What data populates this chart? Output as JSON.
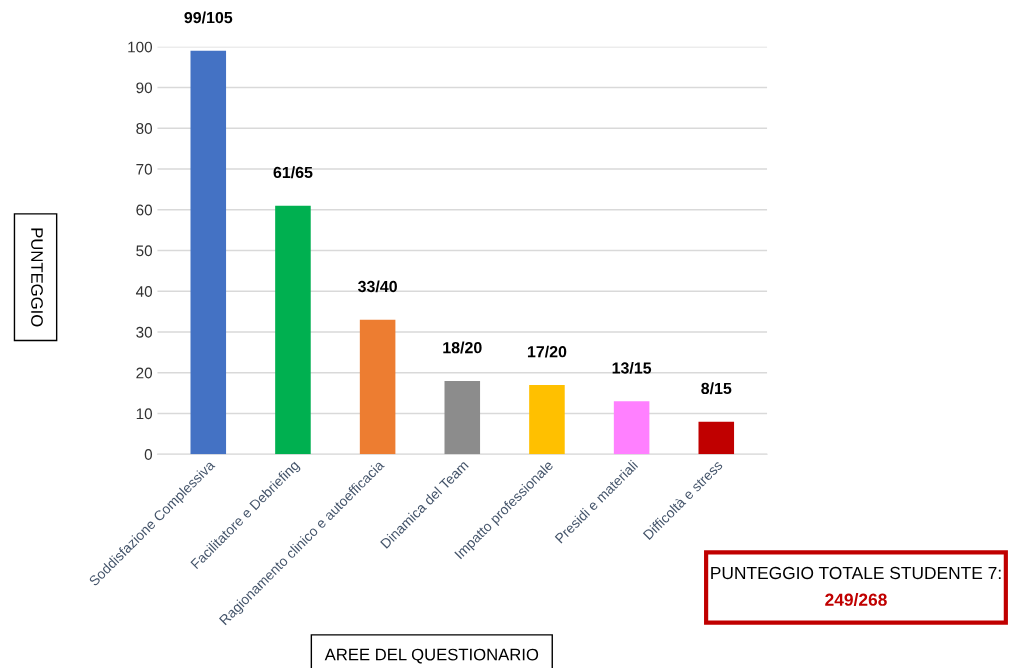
{
  "chart_data": {
    "type": "bar",
    "xlabel": "AREE DEL QUESTIONARIO",
    "ylabel": "PUNTEGGIO",
    "categories": [
      "Soddisfazione Complessiva",
      "Facilitatore e Debriefing",
      "Ragionamento clinico e autoefficacia",
      "Dinamica del Team",
      "Impatto professionale",
      "Presidi e materiali",
      "Difficoltà e stress"
    ],
    "values": [
      99,
      61,
      33,
      18,
      17,
      13,
      8
    ],
    "colors": [
      "#4472c4",
      "#00b050",
      "#ed7d31",
      "#8c8c8c",
      "#ffc000",
      "#ff80ff",
      "#c00000"
    ],
    "value_labels": [
      "99/105",
      "61/65",
      "33/40",
      "18/20",
      "17/20",
      "13/15",
      "8/15"
    ],
    "ylim": [
      0,
      100
    ],
    "yticks": [
      0,
      10,
      20,
      30,
      40,
      50,
      60,
      70,
      80,
      90,
      100
    ],
    "grid": "y",
    "annotations": [
      "PUNTEGGIO TOTALE STUDENTE 7:",
      "249/268"
    ]
  }
}
